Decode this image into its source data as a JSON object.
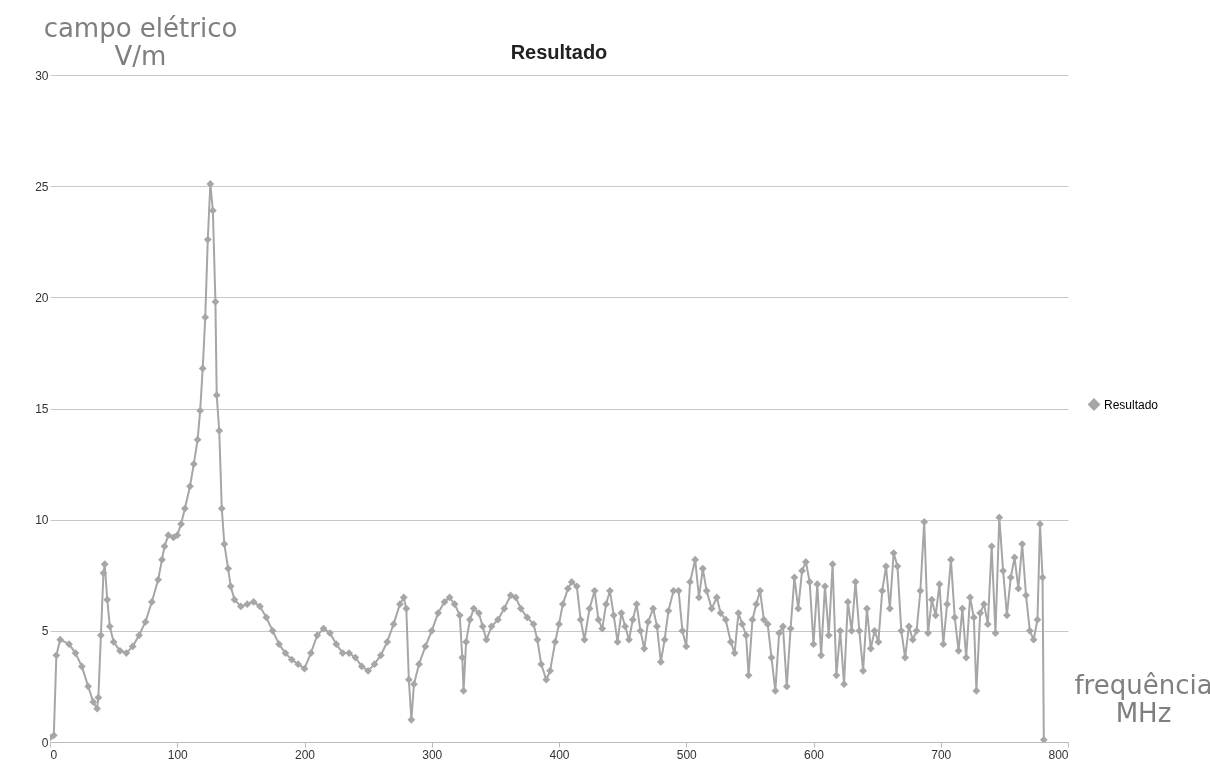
{
  "chart_data": {
    "type": "line",
    "title": "Resultado",
    "xlabel": "frequência MHz",
    "ylabel": "campo elétrico V/m",
    "x": [
      0,
      3,
      5,
      8,
      15,
      20,
      25,
      30,
      34,
      37,
      38,
      40,
      42,
      43,
      45,
      47,
      50,
      55,
      60,
      65,
      70,
      75,
      80,
      85,
      88,
      90,
      93,
      97,
      100,
      103,
      106,
      110,
      113,
      116,
      118,
      120,
      122,
      124,
      126,
      128,
      130,
      131,
      133,
      135,
      137,
      140,
      142,
      145,
      150,
      155,
      160,
      165,
      170,
      175,
      180,
      185,
      190,
      195,
      200,
      205,
      210,
      215,
      220,
      225,
      230,
      235,
      240,
      245,
      250,
      255,
      260,
      265,
      270,
      275,
      278,
      280,
      282,
      284,
      286,
      290,
      295,
      300,
      305,
      310,
      314,
      318,
      322,
      324,
      325,
      327,
      330,
      333,
      337,
      340,
      343,
      347,
      352,
      357,
      362,
      366,
      370,
      375,
      380,
      383,
      386,
      390,
      393,
      397,
      400,
      403,
      407,
      410,
      414,
      417,
      420,
      424,
      428,
      431,
      434,
      437,
      440,
      443,
      446,
      449,
      452,
      455,
      458,
      461,
      464,
      467,
      470,
      474,
      477,
      480,
      483,
      486,
      490,
      494,
      497,
      500,
      503,
      507,
      510,
      513,
      516,
      520,
      524,
      527,
      531,
      535,
      538,
      541,
      544,
      547,
      549,
      552,
      555,
      558,
      561,
      564,
      567,
      570,
      573,
      576,
      579,
      582,
      585,
      588,
      591,
      594,
      597,
      600,
      603,
      606,
      609,
      612,
      615,
      618,
      621,
      624,
      627,
      630,
      633,
      636,
      639,
      642,
      645,
      648,
      651,
      654,
      657,
      660,
      663,
      666,
      669,
      672,
      675,
      678,
      681,
      684,
      687,
      690,
      693,
      696,
      699,
      702,
      705,
      708,
      711,
      714,
      717,
      720,
      723,
      726,
      728,
      731,
      734,
      737,
      740,
      743,
      746,
      749,
      752,
      755,
      758,
      761,
      764,
      767,
      770,
      773,
      776,
      778,
      780,
      781
    ],
    "series": [
      {
        "name": "Resultado",
        "color": "#a6a6a6",
        "values": [
          0.2,
          0.3,
          3.9,
          4.6,
          4.4,
          4.0,
          3.4,
          2.5,
          1.8,
          1.5,
          2.0,
          4.8,
          7.6,
          8.0,
          6.4,
          5.2,
          4.5,
          4.1,
          4.0,
          4.3,
          4.8,
          5.4,
          6.3,
          7.3,
          8.2,
          8.8,
          9.3,
          9.2,
          9.3,
          9.8,
          10.5,
          11.5,
          12.5,
          13.6,
          14.9,
          16.8,
          19.1,
          22.6,
          25.1,
          23.9,
          19.8,
          15.6,
          14.0,
          10.5,
          8.9,
          7.8,
          7.0,
          6.4,
          6.1,
          6.2,
          6.3,
          6.1,
          5.6,
          5.0,
          4.4,
          4.0,
          3.7,
          3.5,
          3.3,
          4.0,
          4.8,
          5.1,
          4.9,
          4.4,
          4.0,
          4.0,
          3.8,
          3.4,
          3.2,
          3.5,
          3.9,
          4.5,
          5.3,
          6.2,
          6.5,
          6.0,
          2.8,
          1.0,
          2.6,
          3.5,
          4.3,
          5.0,
          5.8,
          6.3,
          6.5,
          6.2,
          5.7,
          3.8,
          2.3,
          4.5,
          5.5,
          6.0,
          5.8,
          5.2,
          4.6,
          5.2,
          5.5,
          6.0,
          6.6,
          6.5,
          6.0,
          5.6,
          5.3,
          4.6,
          3.5,
          2.8,
          3.2,
          4.5,
          5.3,
          6.2,
          6.9,
          7.2,
          7.0,
          5.5,
          4.6,
          6.0,
          6.8,
          5.5,
          5.1,
          6.2,
          6.8,
          5.7,
          4.5,
          5.8,
          5.2,
          4.6,
          5.5,
          6.2,
          5.0,
          4.2,
          5.4,
          6.0,
          5.2,
          3.6,
          4.6,
          5.9,
          6.8,
          6.8,
          5.0,
          4.3,
          7.2,
          8.2,
          6.5,
          7.8,
          6.8,
          6.0,
          6.5,
          5.8,
          5.5,
          4.5,
          4.0,
          5.8,
          5.3,
          4.8,
          3.0,
          5.5,
          6.2,
          6.8,
          5.5,
          5.3,
          3.8,
          2.3,
          4.9,
          5.2,
          2.5,
          5.1,
          7.4,
          6.0,
          7.7,
          8.1,
          7.2,
          4.4,
          7.1,
          3.9,
          7.0,
          4.8,
          8.0,
          3.0,
          5.0,
          2.6,
          6.3,
          5.0,
          7.2,
          5.0,
          3.2,
          6.0,
          4.2,
          5.0,
          4.5,
          6.8,
          7.9,
          6.0,
          8.5,
          7.9,
          5.0,
          3.8,
          5.2,
          4.6,
          5.0,
          6.8,
          9.9,
          4.9,
          6.4,
          5.7,
          7.1,
          4.4,
          6.2,
          8.2,
          5.6,
          4.1,
          6.0,
          3.8,
          6.5,
          5.6,
          2.3,
          5.8,
          6.2,
          5.3,
          8.8,
          4.9,
          10.1,
          7.7,
          5.7,
          7.4,
          8.3,
          6.9,
          8.9,
          6.6,
          5.0,
          4.6,
          5.5,
          9.8,
          7.4,
          0.1
        ]
      }
    ],
    "xlim": [
      0,
      800
    ],
    "xticks": [
      0,
      100,
      200,
      300,
      400,
      500,
      600,
      700,
      800
    ],
    "ylim": [
      0,
      30
    ],
    "yticks": [
      0,
      5,
      10,
      15,
      20,
      25,
      30
    ],
    "grid": "y",
    "legend": "right",
    "marker": "diamond",
    "line_style": "solid"
  }
}
